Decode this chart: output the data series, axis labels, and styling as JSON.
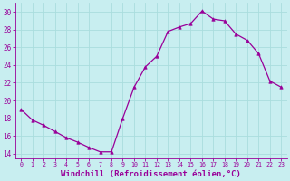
{
  "hours": [
    0,
    1,
    2,
    3,
    4,
    5,
    6,
    7,
    8,
    9,
    10,
    11,
    12,
    13,
    14,
    15,
    16,
    17,
    18,
    19,
    20,
    21,
    22,
    23
  ],
  "values": [
    19.0,
    17.8,
    17.2,
    16.5,
    15.8,
    15.3,
    14.7,
    14.2,
    14.2,
    18.0,
    21.5,
    23.8,
    25.0,
    27.8,
    28.3,
    28.7,
    30.1,
    29.2,
    29.0,
    27.5,
    26.8,
    25.3,
    22.2,
    21.5
  ],
  "ylim": [
    13.5,
    31.0
  ],
  "xlim": [
    -0.5,
    23.5
  ],
  "yticks": [
    14,
    16,
    18,
    20,
    22,
    24,
    26,
    28,
    30
  ],
  "xticks": [
    0,
    1,
    2,
    3,
    4,
    5,
    6,
    7,
    8,
    9,
    10,
    11,
    12,
    13,
    14,
    15,
    16,
    17,
    18,
    19,
    20,
    21,
    22,
    23
  ],
  "line_color": "#990099",
  "marker": "^",
  "marker_size": 2.5,
  "bg_color": "#c8eef0",
  "grid_color": "#aadddd",
  "xlabel": "Windchill (Refroidissement éolien,°C)",
  "xlabel_color": "#990099",
  "tick_color": "#990099",
  "axis_color": "#990099",
  "font_name": "monospace",
  "tick_fontsize": 5.5,
  "xlabel_fontsize": 6.5
}
